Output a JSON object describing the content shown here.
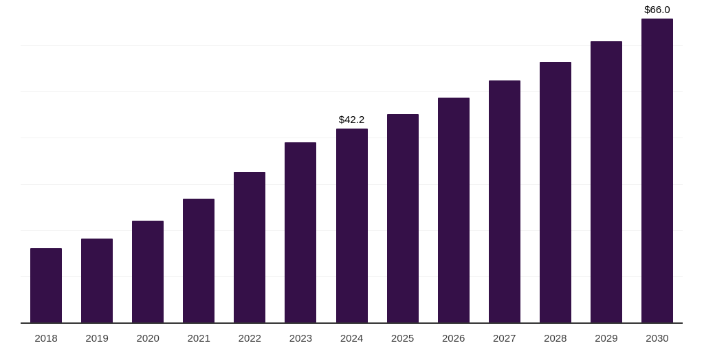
{
  "chart_data": {
    "type": "bar",
    "categories": [
      "2018",
      "2019",
      "2020",
      "2021",
      "2022",
      "2023",
      "2024",
      "2025",
      "2026",
      "2027",
      "2028",
      "2029",
      "2030"
    ],
    "values": [
      16.2,
      18.3,
      22.2,
      26.9,
      32.7,
      39.1,
      42.2,
      45.3,
      48.8,
      52.6,
      56.6,
      61.0,
      66.0
    ],
    "point_labels": [
      "",
      "",
      "",
      "",
      "",
      "",
      "$42.2",
      "",
      "",
      "",
      "",
      "",
      "$66.0"
    ],
    "title": "",
    "xlabel": "",
    "ylabel": "",
    "ylim": [
      0,
      70
    ],
    "grid": {
      "show": true,
      "interval": 10,
      "color": "#f2f2f2"
    },
    "legend": "none",
    "colors": {
      "bar": "#351048",
      "axis_line": "#333333",
      "tick_label": "#3d3d3d",
      "data_label": "#000000",
      "background": "#ffffff"
    }
  }
}
